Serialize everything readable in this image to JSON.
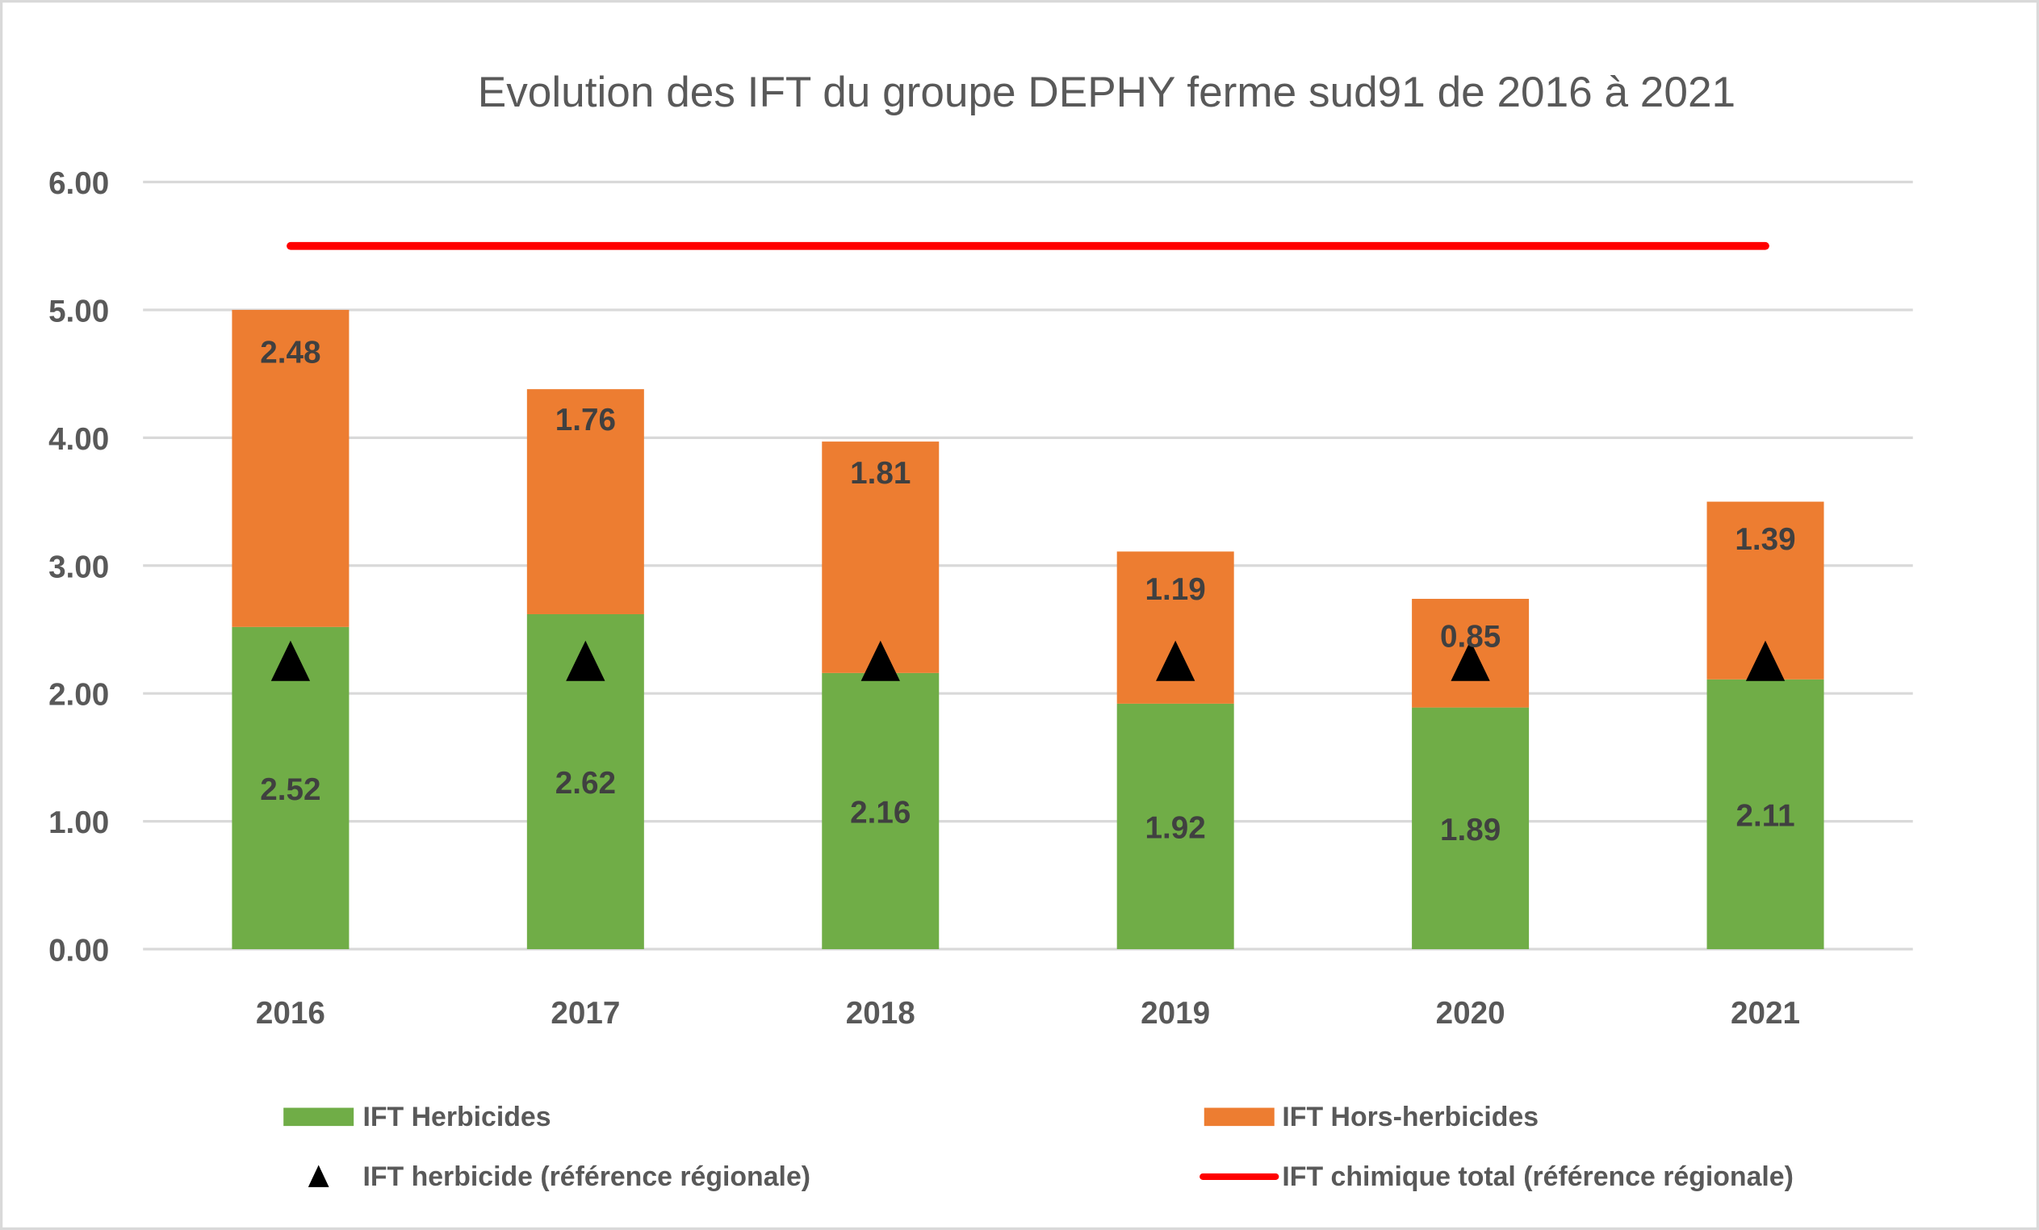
{
  "chart_data": {
    "type": "bar",
    "stacked": true,
    "title": "Evolution des IFT du groupe DEPHY  ferme sud91 de 2016 à 2021",
    "xlabel": "",
    "ylabel": "",
    "ylim": [
      0,
      6
    ],
    "yticks": [
      "0.00",
      "1.00",
      "2.00",
      "3.00",
      "4.00",
      "5.00",
      "6.00"
    ],
    "grid": true,
    "legend_position": "bottom",
    "categories": [
      "2016",
      "2017",
      "2018",
      "2019",
      "2020",
      "2021"
    ],
    "series": [
      {
        "name": "IFT Herbicides",
        "kind": "bar",
        "color": "#70AD47",
        "values": [
          2.52,
          2.62,
          2.16,
          1.92,
          1.89,
          2.11
        ],
        "labels": [
          "2.52",
          "2.62",
          "2.16",
          "1.92",
          "1.89",
          "2.11"
        ]
      },
      {
        "name": "IFT Hors-herbicides",
        "kind": "bar",
        "color": "#ED7D31",
        "values": [
          2.48,
          1.76,
          1.81,
          1.19,
          0.85,
          1.39
        ],
        "labels": [
          "2.48",
          "1.76",
          "1.81",
          "1.19",
          "0.85",
          "1.39"
        ]
      },
      {
        "name": "IFT herbicide  (référence régionale)",
        "kind": "marker",
        "marker": "triangle",
        "color": "#000000",
        "values": [
          2.24,
          2.24,
          2.24,
          2.24,
          2.24,
          2.24
        ]
      },
      {
        "name": "IFT chimique total (référence régionale)",
        "kind": "line",
        "color": "#FF0000",
        "values": [
          5.5,
          5.5,
          5.5,
          5.5,
          5.5,
          5.5
        ]
      }
    ]
  }
}
